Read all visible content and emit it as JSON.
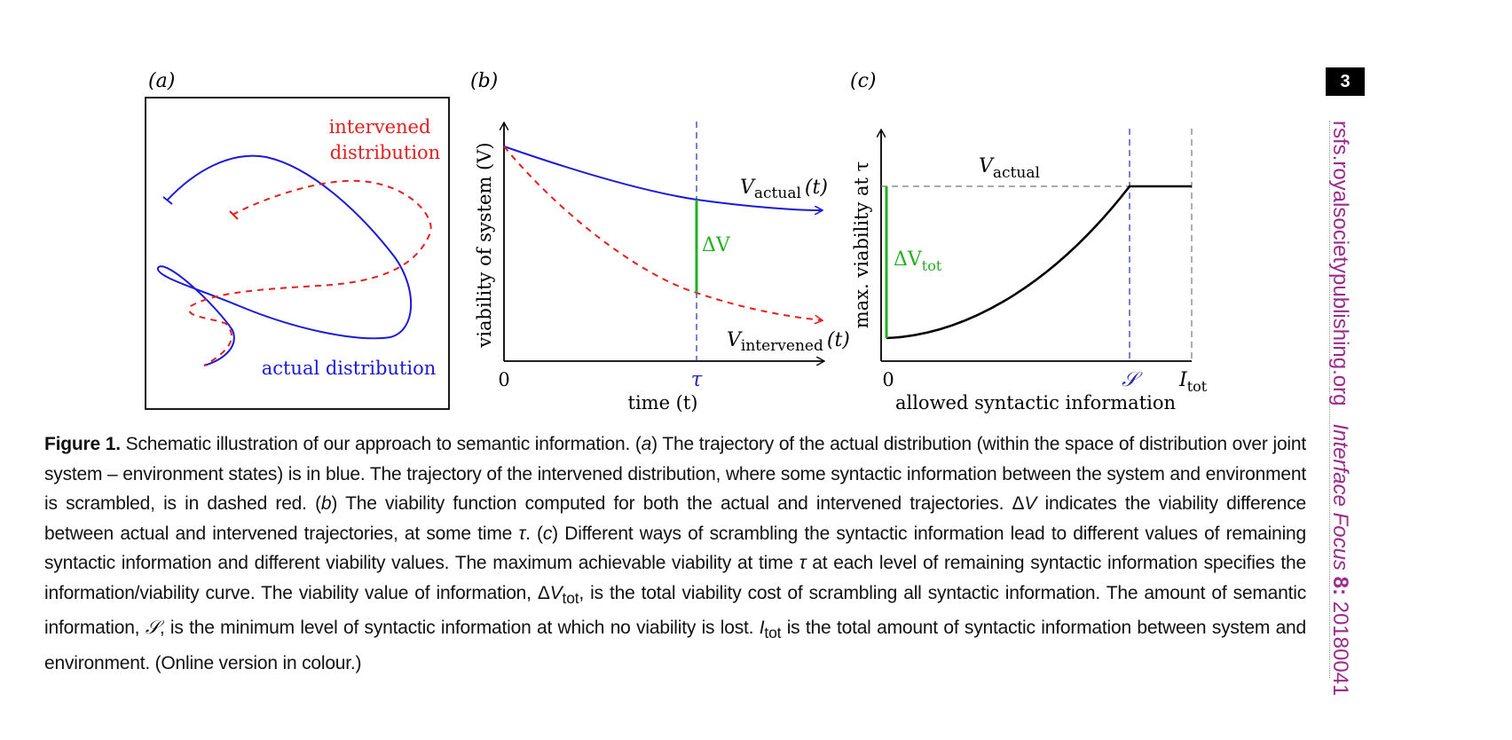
{
  "panel_a": {
    "label": "(a)",
    "intervened_label_line1": "intervened",
    "intervened_label_line2": "distribution",
    "actual_label": "actual distribution",
    "colors": {
      "actual": "#1a1adc",
      "intervened": "#e61e1e"
    }
  },
  "panel_b": {
    "label": "(b)",
    "ylabel": "viability of system (V)",
    "xlabel": "time (t)",
    "origin": "0",
    "tau": "τ",
    "delta_v": "ΔV",
    "v_actual_main": "V",
    "v_actual_sub": "actual",
    "v_actual_arg": "(t)",
    "v_intervened_main": "V",
    "v_intervened_sub": "intervened",
    "v_intervened_arg": "(t)",
    "colors": {
      "actual": "#1a1adc",
      "intervened": "#e61e1e",
      "delta": "#22b022"
    }
  },
  "panel_c": {
    "label": "(c)",
    "ylabel": "max. viability at τ",
    "xlabel": "allowed syntactic information",
    "origin": "0",
    "s_label": "𝒮",
    "itot_main": "I",
    "itot_sub": "tot",
    "v_actual_main": "V",
    "v_actual_sub": "actual",
    "delta_main": "ΔV",
    "delta_sub": "tot",
    "colors": {
      "curve": "#000000",
      "delta": "#22b022",
      "s_line": "#2a2ab0"
    }
  },
  "caption": {
    "label": "Figure 1.",
    "s1": " Schematic illustration of our approach to semantic information. (",
    "a": "a",
    "s2": ") The trajectory of the actual distribution (within the space of distribution over joint system – environment states) is in blue. The trajectory of the intervened distribution, where some syntactic information between the system and environment is scrambled, is in dashed red. (",
    "b": "b",
    "s3": ") The viability function computed for both the actual and intervened trajectories. Δ",
    "v1": "V",
    "s4": " indicates the viability difference between actual and intervened trajectories, at some time ",
    "tau1": "τ",
    "s5": ". (",
    "c": "c",
    "s6": ") Different ways of scrambling the syntactic information lead to different values of remaining syntactic information and different viability values. The maximum achievable viability at time ",
    "tau2": "τ",
    "s7": " at each level of remaining syntactic information specifies the information/viability curve. The viability value of information, Δ",
    "v2": "V",
    "tot1": "tot",
    "s8": ", is the total viability cost of scrambling all syntactic information. The amount of semantic information, ",
    "sem": "𝒮",
    "s9": ", is the minimum level of syntactic information at which no viability is lost. ",
    "i": "I",
    "tot2": "tot",
    "s10": " is the total amount of syntactic information between system and environment. (Online version in colour.)"
  },
  "page_number": "3",
  "sidebar": {
    "url": "rsfs.royalsocietypublishing.org",
    "journal": "Interface Focus",
    "volume": "8:",
    "article": "20180041"
  }
}
